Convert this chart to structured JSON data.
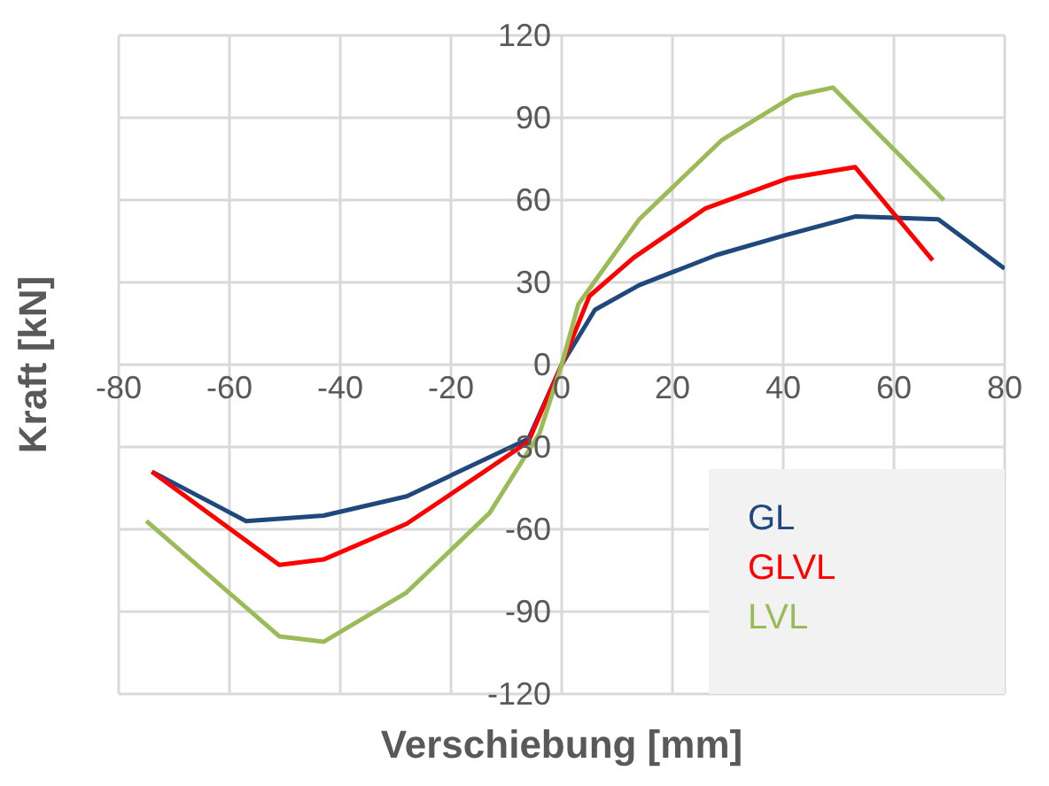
{
  "chart_data": {
    "type": "line",
    "xlabel": "Verschiebung [mm]",
    "ylabel": "Kraft [kN]",
    "xlim": [
      -80,
      80
    ],
    "xticks": [
      -80,
      -60,
      -40,
      -20,
      0,
      20,
      40,
      60,
      80
    ],
    "ylim": [
      -120,
      120
    ],
    "yticks": [
      -120,
      -90,
      -60,
      -30,
      0,
      30,
      60,
      90,
      120
    ],
    "grid": true,
    "legend": "bottom right",
    "marker": "none",
    "line_style": "solid",
    "series": [
      {
        "name": "GL",
        "color": "#1f497d",
        "x": [
          -74,
          -57,
          -43,
          -28,
          -6,
          0,
          6,
          14,
          28,
          40,
          53,
          68,
          80
        ],
        "values": [
          -39,
          -57,
          -55,
          -48,
          -27,
          0,
          20,
          29,
          40,
          47,
          54,
          53,
          35
        ]
      },
      {
        "name": "GLVL",
        "color": "#ff0000",
        "x": [
          -74,
          -51,
          -43,
          -28,
          -14,
          -6,
          0,
          5,
          13,
          26,
          41,
          53,
          67
        ],
        "values": [
          -39,
          -73,
          -71,
          -58,
          -39,
          -28,
          0,
          25,
          39,
          57,
          68,
          72,
          38
        ]
      },
      {
        "name": "LVL",
        "color": "#9bbb59",
        "x": [
          -75,
          -51,
          -43,
          -28,
          -13,
          -4,
          0,
          3,
          14,
          29,
          42,
          49,
          69
        ],
        "values": [
          -57,
          -99,
          -101,
          -83,
          -54,
          -25,
          0,
          22,
          53,
          82,
          98,
          101,
          60
        ]
      }
    ]
  }
}
